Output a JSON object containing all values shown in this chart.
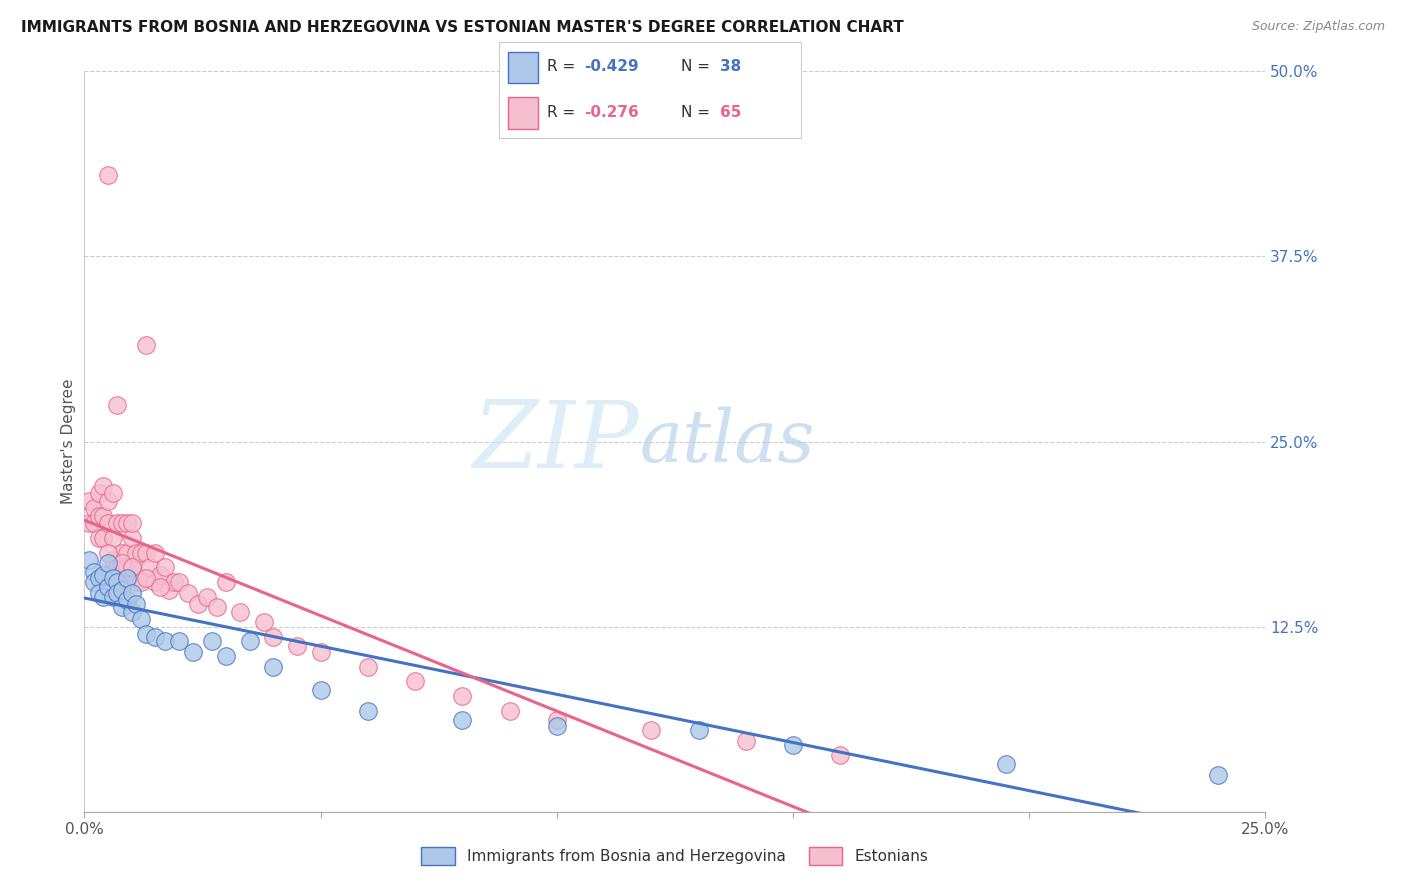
{
  "title": "IMMIGRANTS FROM BOSNIA AND HERZEGOVINA VS ESTONIAN MASTER'S DEGREE CORRELATION CHART",
  "source": "Source: ZipAtlas.com",
  "ylabel": "Master's Degree",
  "xlim": [
    0.0,
    0.25
  ],
  "ylim": [
    0.0,
    0.5
  ],
  "xticks": [
    0.0,
    0.05,
    0.1,
    0.15,
    0.2,
    0.25
  ],
  "xtick_labels": [
    "0.0%",
    "",
    "",
    "",
    "",
    "25.0%"
  ],
  "yticks_right": [
    0.0,
    0.125,
    0.25,
    0.375,
    0.5
  ],
  "ytick_labels_right": [
    "",
    "12.5%",
    "25.0%",
    "37.5%",
    "50.0%"
  ],
  "blue_R": -0.429,
  "blue_N": 38,
  "pink_R": -0.276,
  "pink_N": 65,
  "blue_label": "Immigrants from Bosnia and Herzegovina",
  "pink_label": "Estonians",
  "blue_color": "#adc8e8",
  "blue_line_color": "#4472c4",
  "pink_color": "#f5bfcf",
  "pink_line_color": "#e8648a",
  "watermark_zip_color": "#c8dff0",
  "watermark_atlas_color": "#b0cce8",
  "grid_color": "#cccccc",
  "background_color": "#ffffff",
  "blue_x": [
    0.001,
    0.002,
    0.002,
    0.003,
    0.003,
    0.004,
    0.004,
    0.005,
    0.005,
    0.006,
    0.006,
    0.007,
    0.007,
    0.008,
    0.008,
    0.009,
    0.009,
    0.01,
    0.01,
    0.011,
    0.012,
    0.013,
    0.015,
    0.017,
    0.02,
    0.023,
    0.027,
    0.03,
    0.035,
    0.04,
    0.05,
    0.06,
    0.08,
    0.1,
    0.13,
    0.15,
    0.195,
    0.24
  ],
  "blue_y": [
    0.17,
    0.162,
    0.155,
    0.158,
    0.148,
    0.145,
    0.16,
    0.152,
    0.168,
    0.158,
    0.145,
    0.155,
    0.148,
    0.15,
    0.138,
    0.143,
    0.158,
    0.148,
    0.135,
    0.14,
    0.13,
    0.12,
    0.118,
    0.115,
    0.115,
    0.108,
    0.115,
    0.105,
    0.115,
    0.098,
    0.082,
    0.068,
    0.062,
    0.058,
    0.055,
    0.045,
    0.032,
    0.025
  ],
  "pink_x": [
    0.001,
    0.001,
    0.002,
    0.002,
    0.003,
    0.003,
    0.003,
    0.004,
    0.004,
    0.004,
    0.005,
    0.005,
    0.005,
    0.006,
    0.006,
    0.006,
    0.007,
    0.007,
    0.007,
    0.008,
    0.008,
    0.008,
    0.009,
    0.009,
    0.009,
    0.01,
    0.01,
    0.01,
    0.011,
    0.011,
    0.012,
    0.012,
    0.013,
    0.013,
    0.014,
    0.015,
    0.015,
    0.016,
    0.017,
    0.018,
    0.019,
    0.02,
    0.022,
    0.024,
    0.026,
    0.028,
    0.03,
    0.033,
    0.038,
    0.04,
    0.045,
    0.05,
    0.06,
    0.07,
    0.08,
    0.09,
    0.1,
    0.12,
    0.14,
    0.16,
    0.005,
    0.008,
    0.01,
    0.013,
    0.016
  ],
  "pink_y": [
    0.21,
    0.195,
    0.205,
    0.195,
    0.215,
    0.2,
    0.185,
    0.22,
    0.2,
    0.185,
    0.21,
    0.195,
    0.43,
    0.215,
    0.185,
    0.17,
    0.275,
    0.195,
    0.165,
    0.195,
    0.175,
    0.155,
    0.175,
    0.195,
    0.165,
    0.185,
    0.165,
    0.195,
    0.175,
    0.155,
    0.175,
    0.155,
    0.175,
    0.315,
    0.165,
    0.175,
    0.155,
    0.16,
    0.165,
    0.15,
    0.155,
    0.155,
    0.148,
    0.14,
    0.145,
    0.138,
    0.155,
    0.135,
    0.128,
    0.118,
    0.112,
    0.108,
    0.098,
    0.088,
    0.078,
    0.068,
    0.062,
    0.055,
    0.048,
    0.038,
    0.175,
    0.168,
    0.165,
    0.158,
    0.152
  ]
}
